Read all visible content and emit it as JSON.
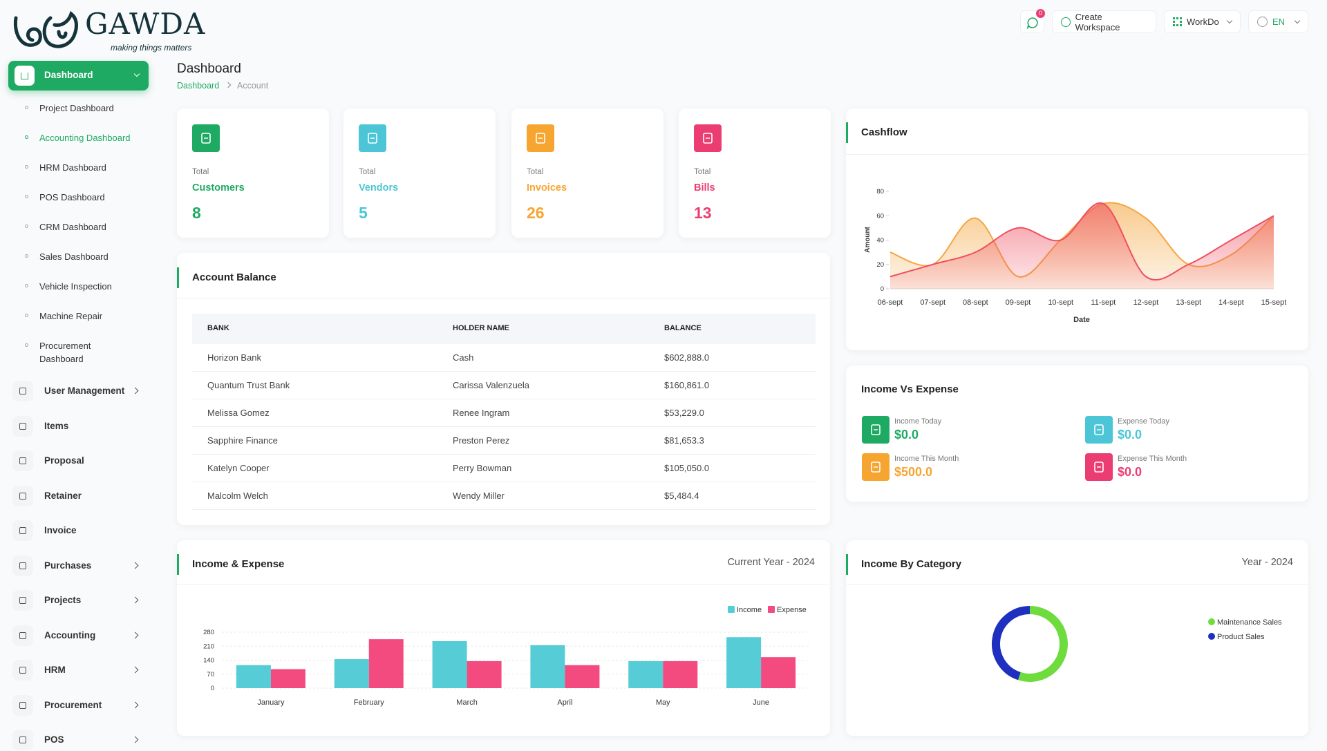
{
  "logo": {
    "name": "GAWDA",
    "tagline": "making things matters"
  },
  "header": {
    "notifications": 0,
    "create_workspace": "Create Workspace",
    "workspace": "WorkDo",
    "language": "EN"
  },
  "sidebar": {
    "active": "Dashboard",
    "submenu": [
      "Project Dashboard",
      "Accounting Dashboard",
      "HRM Dashboard",
      "POS Dashboard",
      "CRM Dashboard",
      "Sales Dashboard",
      "Vehicle Inspection",
      "Machine Repair",
      "Procurement Dashboard"
    ],
    "menu": [
      "User Management",
      "Items",
      "Proposal",
      "Retainer",
      "Invoice",
      "Purchases",
      "Projects",
      "Accounting",
      "HRM",
      "Procurement",
      "POS"
    ]
  },
  "page": {
    "title": "Dashboard",
    "breadcrumb": [
      "Dashboard",
      "Account"
    ]
  },
  "stats": [
    {
      "label": "Total",
      "name": "Customers",
      "value": 8,
      "color": "#1faa63"
    },
    {
      "label": "Total",
      "name": "Vendors",
      "value": 5,
      "color": "#4cc6d6"
    },
    {
      "label": "Total",
      "name": "Invoices",
      "value": 26,
      "color": "#f7a531"
    },
    {
      "label": "Total",
      "name": "Bills",
      "value": 13,
      "color": "#ec3d72"
    }
  ],
  "account_balance": {
    "title": "Account Balance",
    "columns": [
      "BANK",
      "HOLDER NAME",
      "BALANCE"
    ],
    "rows": [
      [
        "Horizon Bank",
        "Cash",
        "$602,888.0"
      ],
      [
        "Quantum Trust Bank",
        "Carissa Valenzuela",
        "$160,861.0"
      ],
      [
        "Melissa Gomez",
        "Renee Ingram",
        "$53,229.0"
      ],
      [
        "Sapphire Finance",
        "Preston Perez",
        "$81,653.3"
      ],
      [
        "Katelyn Cooper",
        "Perry Bowman",
        "$105,050.0"
      ],
      [
        "Malcolm Welch",
        "Wendy Miller",
        "$5,484.4"
      ]
    ]
  },
  "income_vs_expense": {
    "title": "Income Vs Expense",
    "items": [
      {
        "label": "Income Today",
        "value": "$0.0",
        "color": "#1faa63"
      },
      {
        "label": "Expense Today",
        "value": "$0.0",
        "color": "#4cc6d6"
      },
      {
        "label": "Income This Month",
        "value": "$500.0",
        "color": "#f7a531"
      },
      {
        "label": "Expense This Month",
        "value": "$0.0",
        "color": "#ec3d72"
      }
    ]
  },
  "chart_data": [
    {
      "type": "area",
      "title": "Cashflow",
      "x_label": "Date",
      "y_label": "Amount",
      "categories": [
        "06-sept",
        "07-sept",
        "08-sept",
        "09-sept",
        "10-sept",
        "11-sept",
        "12-sept",
        "13-sept",
        "14-sept",
        "15-sept"
      ],
      "series": [
        {
          "color": "#f4a742",
          "values": [
            30,
            20,
            58,
            10,
            40,
            70,
            58,
            20,
            28,
            60
          ]
        },
        {
          "color": "#ee4f5f",
          "values": [
            10,
            20,
            30,
            50,
            40,
            70,
            10,
            20,
            40,
            60
          ]
        }
      ],
      "ylim": [
        0,
        80
      ],
      "yticks": [
        0,
        20,
        40,
        60,
        80
      ]
    },
    {
      "type": "bar",
      "title": "Income & Expense",
      "subtitle": "Current Year - 2024",
      "categories": [
        "January",
        "February",
        "March",
        "April",
        "May",
        "June"
      ],
      "series": [
        {
          "name": "Income",
          "color": "#56ccd6",
          "values": [
            115,
            145,
            235,
            215,
            135,
            255
          ]
        },
        {
          "name": "Expense",
          "color": "#f34b7f",
          "values": [
            95,
            245,
            135,
            115,
            135,
            155
          ]
        }
      ],
      "ylim": [
        0,
        280
      ],
      "yticks": [
        0,
        70,
        140,
        210,
        280
      ],
      "grid": true
    },
    {
      "type": "donut",
      "title": "Income By Category",
      "subtitle": "Year - 2024",
      "categories": [
        "Maintenance Sales",
        "Product Sales"
      ],
      "values": [
        55,
        45
      ],
      "colors": [
        "#6ddc3c",
        "#1f2fbf"
      ]
    }
  ]
}
